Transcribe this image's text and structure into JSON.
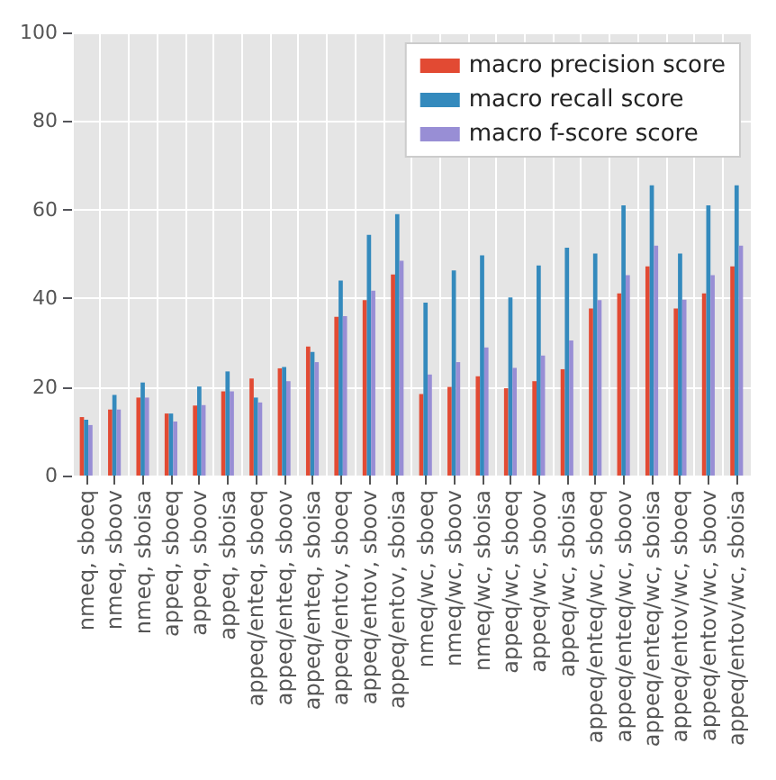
{
  "chart_data": {
    "type": "bar",
    "categories": [
      "nmeq, sboeq",
      "nmeq, sboov",
      "nmeq, sboisa",
      "appeq, sboeq",
      "appeq, sboov",
      "appeq, sboisa",
      "appeq/enteq, sboeq",
      "appeq/enteq, sboov",
      "appeq/enteq, sboisa",
      "appeq/entov, sboeq",
      "appeq/entov, sboov",
      "appeq/entov, sboisa",
      "nmeq/wc, sboeq",
      "nmeq/wc, sboov",
      "nmeq/wc, sboisa",
      "appeq/wc, sboeq",
      "appeq/wc, sboov",
      "appeq/wc, sboisa",
      "appeq/enteq/wc, sboeq",
      "appeq/enteq/wc, sboov",
      "appeq/enteq/wc, sboisa",
      "appeq/entov/wc, sboeq",
      "appeq/entov/wc, sboov",
      "appeq/entov/wc, sboisa"
    ],
    "series": [
      {
        "name": "macro precision score",
        "color": "#e24a33",
        "values": [
          13.2,
          14.9,
          17.6,
          14,
          15.8,
          19,
          21.9,
          24.2,
          29.1,
          35.8,
          39.6,
          45.4,
          18.4,
          20,
          22.4,
          19.7,
          21.3,
          24,
          37.7,
          41.1,
          47.2,
          37.7,
          41.1,
          47.2
        ]
      },
      {
        "name": "macro recall score",
        "color": "#348abd",
        "values": [
          12.6,
          18.2,
          21,
          14,
          20.1,
          23.5,
          17.6,
          24.5,
          27.9,
          44,
          54.3,
          59,
          39,
          46.3,
          49.7,
          40.2,
          47.4,
          51.4,
          50.1,
          61,
          65.5,
          50.1,
          61,
          65.5
        ]
      },
      {
        "name": "macro f-score score",
        "color": "#988ed5",
        "values": [
          11.4,
          14.9,
          17.6,
          12.2,
          15.9,
          19,
          16.5,
          21.3,
          25.6,
          36,
          41.7,
          48.5,
          22.8,
          25.6,
          28.9,
          24.3,
          27.1,
          30.5,
          39.6,
          45.2,
          51.9,
          39.7,
          45.2,
          51.9
        ]
      }
    ],
    "ylim": [
      0,
      100
    ],
    "yticks": [
      0,
      20,
      40,
      60,
      80,
      100
    ],
    "grid": true,
    "legend": "top right"
  }
}
